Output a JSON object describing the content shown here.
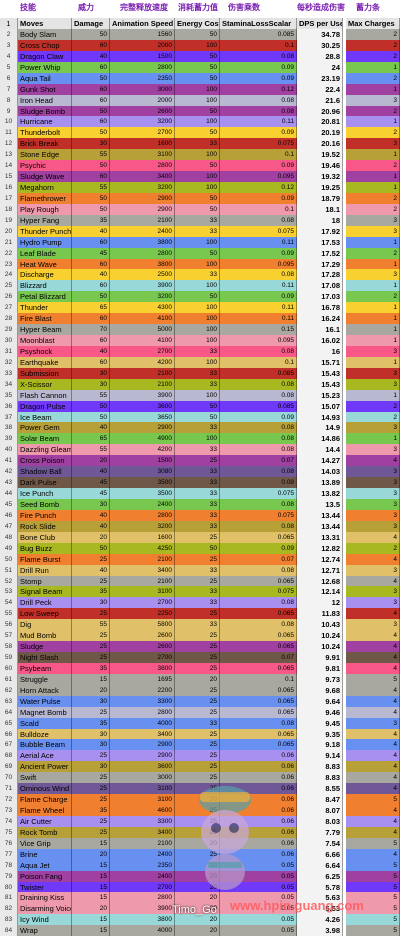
{
  "headers_zh": [
    "技能",
    "威力",
    "完整释放速度",
    "消耗蓄力值",
    "伤害乘数",
    "每秒造成伤害",
    "蓄力条"
  ],
  "columns": [
    "Moves",
    "Damage",
    "Animation Speed",
    "Energy Cost",
    "StaminaLossScalar",
    "DPS per Use",
    "Max Charges"
  ],
  "watermark_left": "Timo_Go",
  "watermark_right": "www.hpin.guang.com",
  "moves": [
    {
      "n": 2,
      "move": "Body Slam",
      "dmg": "50",
      "anim": "1560",
      "en": "50",
      "st": "0.085",
      "dps": "34.78",
      "mc": "2",
      "color": "#a8a8a0"
    },
    {
      "n": 3,
      "move": "Cross Chop",
      "dmg": "60",
      "anim": "2000",
      "en": "100",
      "st": "0.1",
      "dps": "30.25",
      "mc": "2",
      "color": "#c03028"
    },
    {
      "n": 4,
      "move": "Dragon Claw",
      "dmg": "40",
      "anim": "1500",
      "en": "50",
      "st": "0.08",
      "dps": "28.8",
      "mc": "2",
      "color": "#7038f8"
    },
    {
      "n": 5,
      "move": "Power Whip",
      "dmg": "60",
      "anim": "2800",
      "en": "50",
      "st": "0.09",
      "dps": "24",
      "mc": "1",
      "color": "#78c850"
    },
    {
      "n": 6,
      "move": "Aqua Tail",
      "dmg": "50",
      "anim": "2350",
      "en": "50",
      "st": "0.09",
      "dps": "23.19",
      "mc": "2",
      "color": "#6890f0"
    },
    {
      "n": 7,
      "move": "Gunk Shot",
      "dmg": "60",
      "anim": "3000",
      "en": "100",
      "st": "0.12",
      "dps": "22.4",
      "mc": "1",
      "color": "#a040a0"
    },
    {
      "n": 8,
      "move": "Iron Head",
      "dmg": "60",
      "anim": "2000",
      "en": "100",
      "st": "0.08",
      "dps": "21.6",
      "mc": "3",
      "color": "#b8b8d0"
    },
    {
      "n": 9,
      "move": "Sludge Bomb",
      "dmg": "50",
      "anim": "2600",
      "en": "50",
      "st": "0.08",
      "dps": "20.96",
      "mc": "2",
      "color": "#a040a0"
    },
    {
      "n": 10,
      "move": "Hurricane",
      "dmg": "60",
      "anim": "3200",
      "en": "100",
      "st": "0.11",
      "dps": "20.81",
      "mc": "1",
      "color": "#a890f0"
    },
    {
      "n": 11,
      "move": "Thunderbolt",
      "dmg": "50",
      "anim": "2700",
      "en": "50",
      "st": "0.09",
      "dps": "20.19",
      "mc": "2",
      "color": "#f8d030"
    },
    {
      "n": 12,
      "move": "Brick Break",
      "dmg": "30",
      "anim": "1600",
      "en": "33",
      "st": "0.075",
      "dps": "20.16",
      "mc": "3",
      "color": "#c03028"
    },
    {
      "n": 13,
      "move": "Stone Edge",
      "dmg": "55",
      "anim": "3100",
      "en": "100",
      "st": "0.1",
      "dps": "19.52",
      "mc": "1",
      "color": "#b8a038"
    },
    {
      "n": 14,
      "move": "Psychic",
      "dmg": "50",
      "anim": "2800",
      "en": "50",
      "st": "0.09",
      "dps": "19.46",
      "mc": "2",
      "color": "#f85888"
    },
    {
      "n": 15,
      "move": "Sludge Wave",
      "dmg": "60",
      "anim": "3400",
      "en": "100",
      "st": "0.095",
      "dps": "19.32",
      "mc": "1",
      "color": "#a040a0"
    },
    {
      "n": 16,
      "move": "Megahorn",
      "dmg": "55",
      "anim": "3200",
      "en": "100",
      "st": "0.12",
      "dps": "19.25",
      "mc": "1",
      "color": "#a8b820"
    },
    {
      "n": 17,
      "move": "Flamethrower",
      "dmg": "50",
      "anim": "2900",
      "en": "50",
      "st": "0.09",
      "dps": "18.79",
      "mc": "2",
      "color": "#f08030"
    },
    {
      "n": 18,
      "move": "Play Rough",
      "dmg": "50",
      "anim": "2900",
      "en": "50",
      "st": "0.1",
      "dps": "18.1",
      "mc": "2",
      "color": "#ee99ac"
    },
    {
      "n": 19,
      "move": "Hyper Fang",
      "dmg": "35",
      "anim": "2100",
      "en": "33",
      "st": "0.08",
      "dps": "18",
      "mc": "3",
      "color": "#a8a8a0"
    },
    {
      "n": 20,
      "move": "Thunder Punch",
      "dmg": "40",
      "anim": "2400",
      "en": "33",
      "st": "0.075",
      "dps": "17.92",
      "mc": "3",
      "color": "#f8d030"
    },
    {
      "n": 21,
      "move": "Hydro Pump",
      "dmg": "60",
      "anim": "3800",
      "en": "100",
      "st": "0.11",
      "dps": "17.53",
      "mc": "1",
      "color": "#6890f0"
    },
    {
      "n": 22,
      "move": "Leaf Blade",
      "dmg": "45",
      "anim": "2800",
      "en": "50",
      "st": "0.09",
      "dps": "17.52",
      "mc": "2",
      "color": "#78c850"
    },
    {
      "n": 23,
      "move": "Heat Wave",
      "dmg": "60",
      "anim": "3800",
      "en": "100",
      "st": "0.095",
      "dps": "17.29",
      "mc": "1",
      "color": "#f08030"
    },
    {
      "n": 24,
      "move": "Discharge",
      "dmg": "40",
      "anim": "2500",
      "en": "33",
      "st": "0.08",
      "dps": "17.28",
      "mc": "3",
      "color": "#f8d030"
    },
    {
      "n": 25,
      "move": "Blizzard",
      "dmg": "60",
      "anim": "3900",
      "en": "100",
      "st": "0.11",
      "dps": "17.08",
      "mc": "1",
      "color": "#98d8d8"
    },
    {
      "n": 26,
      "move": "Petal Blizzard",
      "dmg": "50",
      "anim": "3200",
      "en": "50",
      "st": "0.09",
      "dps": "17.03",
      "mc": "2",
      "color": "#78c850"
    },
    {
      "n": 27,
      "move": "Thunder",
      "dmg": "65",
      "anim": "4300",
      "en": "100",
      "st": "0.11",
      "dps": "16.78",
      "mc": "1",
      "color": "#f8d030"
    },
    {
      "n": 28,
      "move": "Fire Blast",
      "dmg": "60",
      "anim": "4100",
      "en": "100",
      "st": "0.11",
      "dps": "16.24",
      "mc": "1",
      "color": "#f08030"
    },
    {
      "n": 29,
      "move": "Hyper Beam",
      "dmg": "70",
      "anim": "5000",
      "en": "100",
      "st": "0.15",
      "dps": "16.1",
      "mc": "1",
      "color": "#a8a8a0"
    },
    {
      "n": 30,
      "move": "Moonblast",
      "dmg": "60",
      "anim": "4100",
      "en": "100",
      "st": "0.095",
      "dps": "16.02",
      "mc": "1",
      "color": "#ee99ac"
    },
    {
      "n": 31,
      "move": "Psyshock",
      "dmg": "40",
      "anim": "2700",
      "en": "33",
      "st": "0.08",
      "dps": "16",
      "mc": "3",
      "color": "#f85888"
    },
    {
      "n": 32,
      "move": "Earthquake",
      "dmg": "60",
      "anim": "4200",
      "en": "100",
      "st": "0.1",
      "dps": "15.71",
      "mc": "1",
      "color": "#e0c068"
    },
    {
      "n": 33,
      "move": "Submission",
      "dmg": "30",
      "anim": "2100",
      "en": "33",
      "st": "0.085",
      "dps": "15.43",
      "mc": "3",
      "color": "#c03028"
    },
    {
      "n": 34,
      "move": "X-Scissor",
      "dmg": "30",
      "anim": "2100",
      "en": "33",
      "st": "0.08",
      "dps": "15.43",
      "mc": "3",
      "color": "#a8b820"
    },
    {
      "n": 35,
      "move": "Flash Cannon",
      "dmg": "55",
      "anim": "3900",
      "en": "100",
      "st": "0.08",
      "dps": "15.23",
      "mc": "1",
      "color": "#b8b8d0"
    },
    {
      "n": 36,
      "move": "Dragon Pulse",
      "dmg": "50",
      "anim": "3600",
      "en": "50",
      "st": "0.085",
      "dps": "15.07",
      "mc": "2",
      "color": "#7038f8"
    },
    {
      "n": 37,
      "move": "Ice Beam",
      "dmg": "50",
      "anim": "3650",
      "en": "50",
      "st": "0.09",
      "dps": "14.93",
      "mc": "2",
      "color": "#98d8d8"
    },
    {
      "n": 38,
      "move": "Power Gem",
      "dmg": "40",
      "anim": "2900",
      "en": "33",
      "st": "0.08",
      "dps": "14.9",
      "mc": "3",
      "color": "#b8a038"
    },
    {
      "n": 39,
      "move": "Solar Beam",
      "dmg": "65",
      "anim": "4900",
      "en": "100",
      "st": "0.08",
      "dps": "14.86",
      "mc": "1",
      "color": "#78c850"
    },
    {
      "n": 40,
      "move": "Dazzling Gleam",
      "dmg": "55",
      "anim": "4200",
      "en": "33",
      "st": "0.08",
      "dps": "14.4",
      "mc": "3",
      "color": "#ee99ac"
    },
    {
      "n": 41,
      "move": "Cross Poison",
      "dmg": "20",
      "anim": "1500",
      "en": "25",
      "st": "0.07",
      "dps": "14.27",
      "mc": "4",
      "color": "#a040a0"
    },
    {
      "n": 42,
      "move": "Shadow Ball",
      "dmg": "40",
      "anim": "3080",
      "en": "33",
      "st": "0.08",
      "dps": "14.03",
      "mc": "3",
      "color": "#705898"
    },
    {
      "n": 43,
      "move": "Dark Pulse",
      "dmg": "45",
      "anim": "3500",
      "en": "33",
      "st": "0.08",
      "dps": "13.89",
      "mc": "3",
      "color": "#705848"
    },
    {
      "n": 44,
      "move": "Ice Punch",
      "dmg": "45",
      "anim": "3500",
      "en": "33",
      "st": "0.075",
      "dps": "13.82",
      "mc": "3",
      "color": "#98d8d8"
    },
    {
      "n": 45,
      "move": "Seed Bomb",
      "dmg": "30",
      "anim": "2400",
      "en": "33",
      "st": "0.08",
      "dps": "13.5",
      "mc": "3",
      "color": "#78c850"
    },
    {
      "n": 46,
      "move": "Fire Punch",
      "dmg": "40",
      "anim": "2800",
      "en": "33",
      "st": "0.075",
      "dps": "13.44",
      "mc": "3",
      "color": "#f08030"
    },
    {
      "n": 47,
      "move": "Rock Slide",
      "dmg": "40",
      "anim": "3200",
      "en": "33",
      "st": "0.08",
      "dps": "13.44",
      "mc": "3",
      "color": "#b8a038"
    },
    {
      "n": 48,
      "move": "Bone Club",
      "dmg": "20",
      "anim": "1600",
      "en": "25",
      "st": "0.065",
      "dps": "13.31",
      "mc": "4",
      "color": "#e0c068"
    },
    {
      "n": 49,
      "move": "Bug Buzz",
      "dmg": "50",
      "anim": "4250",
      "en": "50",
      "st": "0.09",
      "dps": "12.82",
      "mc": "2",
      "color": "#a8b820"
    },
    {
      "n": 50,
      "move": "Flame Burst",
      "dmg": "25",
      "anim": "2100",
      "en": "25",
      "st": "0.07",
      "dps": "12.74",
      "mc": "4",
      "color": "#f08030"
    },
    {
      "n": 51,
      "move": "Drill Run",
      "dmg": "40",
      "anim": "3400",
      "en": "33",
      "st": "0.08",
      "dps": "12.71",
      "mc": "3",
      "color": "#e0c068"
    },
    {
      "n": 52,
      "move": "Stomp",
      "dmg": "25",
      "anim": "2100",
      "en": "25",
      "st": "0.065",
      "dps": "12.68",
      "mc": "4",
      "color": "#a8a8a0"
    },
    {
      "n": 53,
      "move": "Signal Beam",
      "dmg": "35",
      "anim": "3100",
      "en": "33",
      "st": "0.075",
      "dps": "12.14",
      "mc": "3",
      "color": "#a8b820"
    },
    {
      "n": 54,
      "move": "Drill Peck",
      "dmg": "30",
      "anim": "2700",
      "en": "33",
      "st": "0.08",
      "dps": "12",
      "mc": "3",
      "color": "#a890f0"
    },
    {
      "n": 55,
      "move": "Low Sweep",
      "dmg": "25",
      "anim": "2250",
      "en": "25",
      "st": "0.065",
      "dps": "11.83",
      "mc": "4",
      "color": "#c03028"
    },
    {
      "n": 56,
      "move": "Dig",
      "dmg": "55",
      "anim": "5800",
      "en": "33",
      "st": "0.08",
      "dps": "10.43",
      "mc": "3",
      "color": "#e0c068"
    },
    {
      "n": 57,
      "move": "Mud Bomb",
      "dmg": "25",
      "anim": "2600",
      "en": "25",
      "st": "0.065",
      "dps": "10.24",
      "mc": "4",
      "color": "#e0c068"
    },
    {
      "n": 58,
      "move": "Sludge",
      "dmg": "25",
      "anim": "2600",
      "en": "25",
      "st": "0.065",
      "dps": "10.24",
      "mc": "4",
      "color": "#a040a0"
    },
    {
      "n": 59,
      "move": "Night Slash",
      "dmg": "25",
      "anim": "2700",
      "en": "25",
      "st": "0.07",
      "dps": "9.91",
      "mc": "4",
      "color": "#705848"
    },
    {
      "n": 60,
      "move": "Psybeam",
      "dmg": "35",
      "anim": "3800",
      "en": "25",
      "st": "0.065",
      "dps": "9.81",
      "mc": "4",
      "color": "#f85888"
    },
    {
      "n": 61,
      "move": "Struggle",
      "dmg": "15",
      "anim": "1695",
      "en": "20",
      "st": "0.1",
      "dps": "9.73",
      "mc": "5",
      "color": "#a8a8a0"
    },
    {
      "n": 62,
      "move": "Horn Attack",
      "dmg": "20",
      "anim": "2200",
      "en": "25",
      "st": "0.065",
      "dps": "9.68",
      "mc": "4",
      "color": "#a8a8a0"
    },
    {
      "n": 63,
      "move": "Water Pulse",
      "dmg": "30",
      "anim": "3300",
      "en": "25",
      "st": "0.065",
      "dps": "9.64",
      "mc": "4",
      "color": "#6890f0"
    },
    {
      "n": 64,
      "move": "Magnet Bomb",
      "dmg": "25",
      "anim": "2800",
      "en": "25",
      "st": "0.065",
      "dps": "9.46",
      "mc": "4",
      "color": "#b8b8d0"
    },
    {
      "n": 65,
      "move": "Scald",
      "dmg": "35",
      "anim": "4000",
      "en": "33",
      "st": "0.08",
      "dps": "9.45",
      "mc": "3",
      "color": "#6890f0"
    },
    {
      "n": 66,
      "move": "Bulldoze",
      "dmg": "30",
      "anim": "3400",
      "en": "25",
      "st": "0.065",
      "dps": "9.35",
      "mc": "4",
      "color": "#e0c068"
    },
    {
      "n": 67,
      "move": "Bubble Beam",
      "dmg": "30",
      "anim": "2900",
      "en": "25",
      "st": "0.065",
      "dps": "9.18",
      "mc": "4",
      "color": "#6890f0"
    },
    {
      "n": 68,
      "move": "Aerial Ace",
      "dmg": "25",
      "anim": "2900",
      "en": "25",
      "st": "0.06",
      "dps": "9.14",
      "mc": "4",
      "color": "#a890f0"
    },
    {
      "n": 69,
      "move": "Ancient Power",
      "dmg": "30",
      "anim": "3600",
      "en": "25",
      "st": "0.06",
      "dps": "8.83",
      "mc": "4",
      "color": "#b8a038"
    },
    {
      "n": 70,
      "move": "Swift",
      "dmg": "25",
      "anim": "3000",
      "en": "25",
      "st": "0.06",
      "dps": "8.83",
      "mc": "4",
      "color": "#a8a8a0"
    },
    {
      "n": 71,
      "move": "Ominous Wind",
      "dmg": "25",
      "anim": "3100",
      "en": "25",
      "st": "0.06",
      "dps": "8.55",
      "mc": "4",
      "color": "#705898"
    },
    {
      "n": 72,
      "move": "Flame Charge",
      "dmg": "25",
      "anim": "3100",
      "en": "20",
      "st": "0.06",
      "dps": "8.47",
      "mc": "5",
      "color": "#f08030"
    },
    {
      "n": 73,
      "move": "Flame Wheel",
      "dmg": "35",
      "anim": "4600",
      "en": "25",
      "st": "0.06",
      "dps": "8.07",
      "mc": "4",
      "color": "#f08030"
    },
    {
      "n": 74,
      "move": "Air Cutter",
      "dmg": "25",
      "anim": "3300",
      "en": "25",
      "st": "0.06",
      "dps": "8.03",
      "mc": "4",
      "color": "#a890f0"
    },
    {
      "n": 75,
      "move": "Rock Tomb",
      "dmg": "25",
      "anim": "3400",
      "en": "25",
      "st": "0.06",
      "dps": "7.79",
      "mc": "4",
      "color": "#b8a038"
    },
    {
      "n": 76,
      "move": "Vice Grip",
      "dmg": "15",
      "anim": "2100",
      "en": "20",
      "st": "0.06",
      "dps": "7.54",
      "mc": "5",
      "color": "#a8a8a0"
    },
    {
      "n": 77,
      "move": "Brine",
      "dmg": "20",
      "anim": "2400",
      "en": "25",
      "st": "0.06",
      "dps": "6.66",
      "mc": "4",
      "color": "#6890f0"
    },
    {
      "n": 78,
      "move": "Aqua Jet",
      "dmg": "15",
      "anim": "2350",
      "en": "20",
      "st": "0.05",
      "dps": "6.64",
      "mc": "5",
      "color": "#6890f0"
    },
    {
      "n": 79,
      "move": "Poison Fang",
      "dmg": "15",
      "anim": "2400",
      "en": "20",
      "st": "0.05",
      "dps": "6.25",
      "mc": "5",
      "color": "#a040a0"
    },
    {
      "n": 80,
      "move": "Twister",
      "dmg": "15",
      "anim": "2700",
      "en": "20",
      "st": "0.05",
      "dps": "5.78",
      "mc": "5",
      "color": "#7038f8"
    },
    {
      "n": 81,
      "move": "Draining Kiss",
      "dmg": "15",
      "anim": "2800",
      "en": "20",
      "st": "0.05",
      "dps": "5.63",
      "mc": "5",
      "color": "#ee99ac"
    },
    {
      "n": 82,
      "move": "Disarming Voice",
      "dmg": "20",
      "anim": "3900",
      "en": "20",
      "st": "0.05",
      "dps": "5.53",
      "mc": "5",
      "color": "#ee99ac"
    },
    {
      "n": 83,
      "move": "Icy Wind",
      "dmg": "15",
      "anim": "3800",
      "en": "20",
      "st": "0.05",
      "dps": "4.26",
      "mc": "5",
      "color": "#98d8d8"
    },
    {
      "n": 84,
      "move": "Wrap",
      "dmg": "15",
      "anim": "4000",
      "en": "20",
      "st": "0.05",
      "dps": "3.98",
      "mc": "5",
      "color": "#a8a8a0"
    }
  ]
}
